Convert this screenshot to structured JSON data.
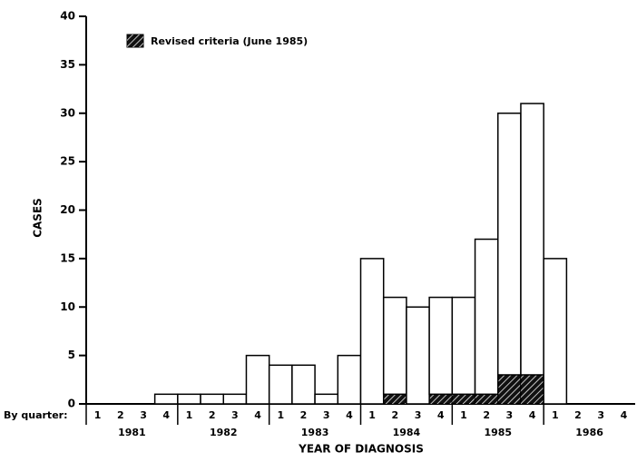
{
  "chart_data": {
    "type": "stacked-bar",
    "ylabel": "CASES",
    "xlabel": "YEAR OF DIAGNOSIS",
    "quarter_row_label": "By quarter:",
    "categories": [
      "1",
      "2",
      "3",
      "4",
      "1",
      "2",
      "3",
      "4",
      "1",
      "2",
      "3",
      "4",
      "1",
      "2",
      "3",
      "4",
      "1",
      "2",
      "3",
      "4",
      "1",
      "2",
      "3",
      "4"
    ],
    "years": [
      "1981",
      "1982",
      "1983",
      "1984",
      "1985",
      "1986"
    ],
    "series": [
      {
        "name": "Revised criteria (June 1985)",
        "color": "#111111",
        "hatched": true,
        "values": [
          0,
          0,
          0,
          0,
          0,
          0,
          0,
          0,
          0,
          0,
          0,
          0,
          0,
          1,
          0,
          1,
          1,
          1,
          3,
          3,
          0,
          0,
          0,
          0
        ]
      },
      {
        "color": "#ffffff",
        "values": [
          0,
          0,
          0,
          1,
          1,
          1,
          1,
          5,
          4,
          4,
          1,
          5,
          15,
          10,
          10,
          10,
          10,
          16,
          27,
          28,
          15,
          0,
          0,
          0
        ]
      }
    ],
    "ylim": [
      0,
      40
    ],
    "yticks": [
      0,
      5,
      10,
      15,
      20,
      25,
      30,
      35,
      40
    ]
  }
}
